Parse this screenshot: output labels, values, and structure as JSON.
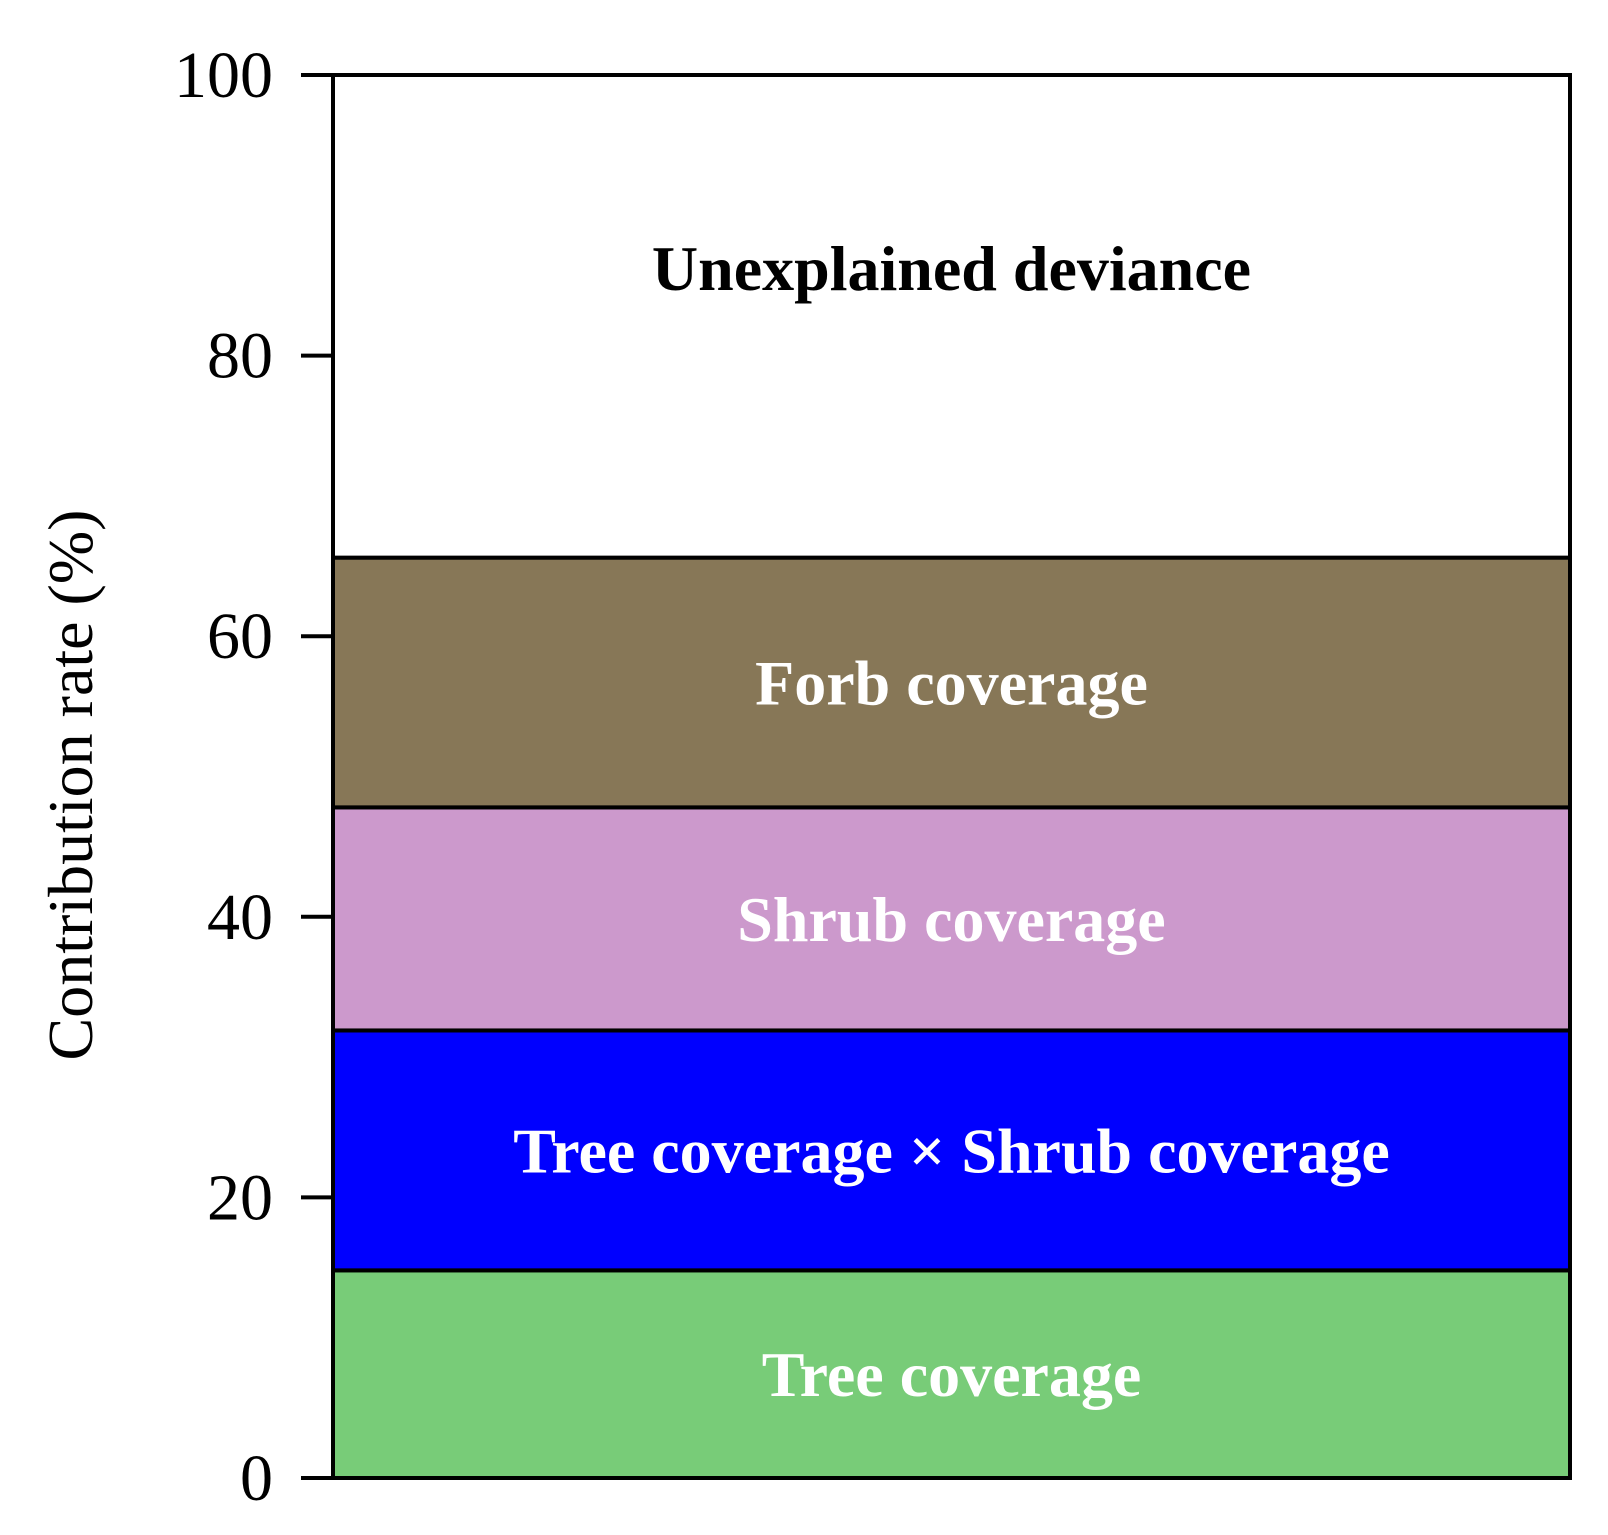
{
  "chart_data": {
    "type": "bar",
    "stacked": true,
    "ylabel": "Contribution rate (%)",
    "xlabel": "",
    "ylim": [
      0,
      100
    ],
    "yticks": [
      0,
      20,
      40,
      60,
      80,
      100
    ],
    "grid": false,
    "legend": "none",
    "series": [
      {
        "name": "Tree coverage",
        "value": 14.8,
        "color": "#78cc78",
        "label_color": "#ffffff"
      },
      {
        "name": "Tree coverage × Shrub coverage",
        "value": 17.1,
        "color": "#0000ff",
        "label_color": "#ffffff"
      },
      {
        "name": "Shrub coverage",
        "value": 15.9,
        "color": "#cc99cc",
        "label_color": "#ffffff"
      },
      {
        "name": "Forb coverage",
        "value": 17.8,
        "color": "#877757",
        "label_color": "#ffffff"
      },
      {
        "name": "Unexplained deviance",
        "value": 34.4,
        "color": "#ffffff",
        "label_color": "#000000"
      }
    ]
  }
}
